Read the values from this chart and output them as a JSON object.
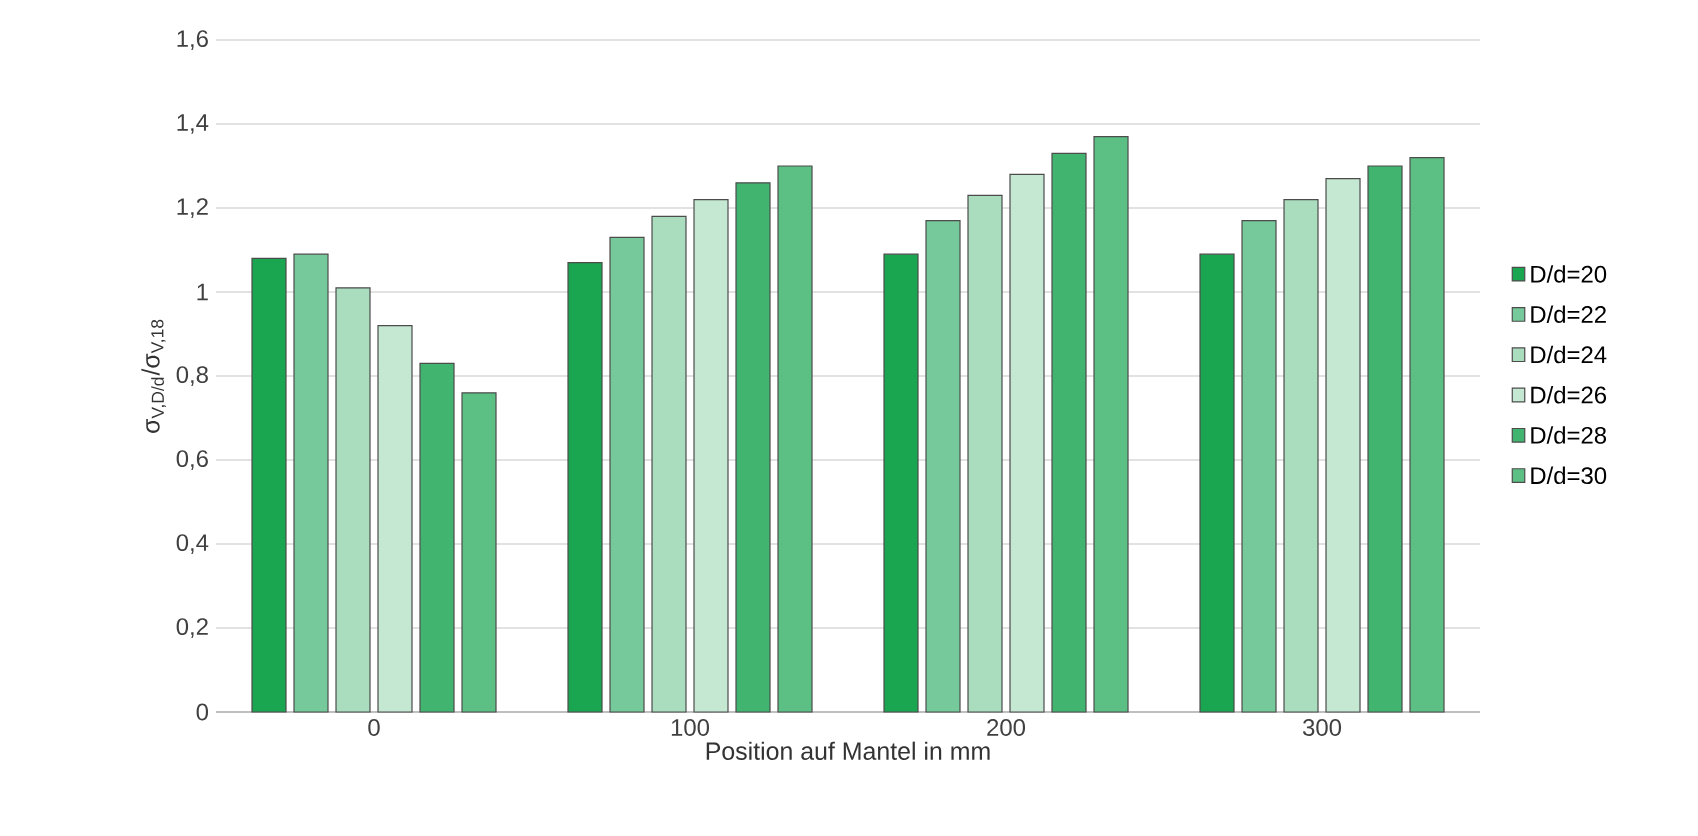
{
  "chart_data": {
    "type": "bar",
    "xlabel": "Position auf Mantel in mm",
    "ylabel": "σ$_{V,D/d}$/σ$_{V,18}$",
    "categories": [
      "0",
      "100",
      "200",
      "300"
    ],
    "series": [
      {
        "name": "D/d=20",
        "color": "#1aa550",
        "values": [
          1.08,
          1.07,
          1.09,
          1.09
        ]
      },
      {
        "name": "D/d=22",
        "color": "#76c99a",
        "values": [
          1.09,
          1.13,
          1.17,
          1.17
        ]
      },
      {
        "name": "D/d=24",
        "color": "#a9ddbe",
        "values": [
          1.01,
          1.18,
          1.23,
          1.22
        ]
      },
      {
        "name": "D/d=26",
        "color": "#c4e8d2",
        "values": [
          0.92,
          1.22,
          1.28,
          1.27
        ]
      },
      {
        "name": "D/d=28",
        "color": "#41b570",
        "values": [
          0.83,
          1.26,
          1.33,
          1.3
        ]
      },
      {
        "name": "D/d=30",
        "color": "#5cbf84",
        "values": [
          0.76,
          1.3,
          1.37,
          1.32
        ]
      }
    ],
    "ylim": [
      0,
      1.6
    ],
    "yticks": [
      0,
      {
        "value": 0.2,
        "label": "0,2"
      },
      {
        "value": 0.4,
        "label": "0,4"
      },
      {
        "value": 0.6,
        "label": "0,6"
      },
      {
        "value": 0.8,
        "label": "0,8"
      },
      1,
      {
        "value": 1.2,
        "label": "1,2"
      },
      {
        "value": 1.4,
        "label": "1,4"
      },
      {
        "value": 1.6,
        "label": "1,6"
      }
    ],
    "grid": "y",
    "legend": "right"
  }
}
